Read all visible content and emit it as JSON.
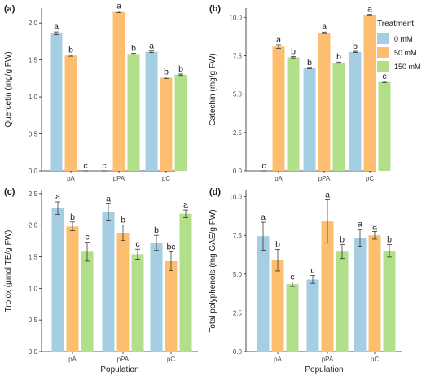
{
  "legend": {
    "title": "Treatment",
    "entries": [
      {
        "label": "0 mM",
        "color": "#a6cee3"
      },
      {
        "label": "50 mM",
        "color": "#fdbf6f"
      },
      {
        "label": "150 mM",
        "color": "#b2df8a"
      }
    ]
  },
  "chart_data": [
    {
      "type": "bar",
      "panel": "(a)",
      "categories": [
        "pA",
        "pPA",
        "pC"
      ],
      "xlabel": "",
      "ylabel": "Quercetin (mg/g FW)",
      "ylim": [
        0,
        2.2
      ],
      "yticks": [
        0.0,
        0.5,
        1.0,
        1.5,
        2.0
      ],
      "ytick_labels": [
        "0.0",
        "0.5",
        "1.0",
        "1.5",
        "2.0"
      ],
      "series": [
        {
          "name": "0 mM",
          "values": [
            1.86,
            0.0,
            1.61
          ],
          "err": [
            0.02,
            0,
            0.01
          ],
          "letters": [
            "a",
            "c",
            "a"
          ]
        },
        {
          "name": "50 mM",
          "values": [
            1.56,
            2.15,
            1.26
          ],
          "err": [
            0.01,
            0.01,
            0.01
          ],
          "letters": [
            "b",
            "a",
            "b"
          ]
        },
        {
          "name": "150 mM",
          "values": [
            0.0,
            1.58,
            1.3
          ],
          "err": [
            0,
            0.01,
            0.01
          ],
          "letters": [
            "c",
            "b",
            "b"
          ]
        }
      ]
    },
    {
      "type": "bar",
      "panel": "(b)",
      "categories": [
        "pA",
        "pPA",
        "pC"
      ],
      "xlabel": "",
      "ylabel": "Catechin (mg/g FW)",
      "ylim": [
        0,
        10.6
      ],
      "yticks": [
        0.0,
        2.5,
        5.0,
        7.5,
        10.0
      ],
      "ytick_labels": [
        "0.0",
        "2.5",
        "5.0",
        "7.5",
        "10.0"
      ],
      "series": [
        {
          "name": "0 mM",
          "values": [
            0.0,
            6.7,
            7.75
          ],
          "err": [
            0,
            0.04,
            0.04
          ],
          "letters": [
            "c",
            "b",
            "b"
          ]
        },
        {
          "name": "50 mM",
          "values": [
            8.1,
            9.0,
            10.15
          ],
          "err": [
            0.12,
            0.05,
            0.04
          ],
          "letters": [
            "a",
            "a",
            "a"
          ]
        },
        {
          "name": "150 mM",
          "values": [
            7.4,
            7.05,
            5.8
          ],
          "err": [
            0.04,
            0.04,
            0.04
          ],
          "letters": [
            "b",
            "b",
            "c"
          ]
        }
      ]
    },
    {
      "type": "bar",
      "panel": "(c)",
      "categories": [
        "pA",
        "pPA",
        "pC"
      ],
      "xlabel": "Population",
      "ylabel": "Trolox (μmol TE/g FW)",
      "ylim": [
        0,
        2.55
      ],
      "yticks": [
        0.0,
        0.5,
        1.0,
        1.5,
        2.0,
        2.5
      ],
      "ytick_labels": [
        "0.0",
        "0.5",
        "1.0",
        "1.5",
        "2.0",
        "2.5"
      ],
      "series": [
        {
          "name": "0 mM",
          "values": [
            2.27,
            2.21,
            1.72
          ],
          "err": [
            0.1,
            0.13,
            0.12
          ],
          "letters": [
            "a",
            "a",
            "b"
          ]
        },
        {
          "name": "50 mM",
          "values": [
            1.98,
            1.88,
            1.43
          ],
          "err": [
            0.07,
            0.12,
            0.15
          ],
          "letters": [
            "b",
            "b",
            "bc"
          ]
        },
        {
          "name": "150 mM",
          "values": [
            1.58,
            1.54,
            2.18
          ],
          "err": [
            0.15,
            0.08,
            0.06
          ],
          "letters": [
            "c",
            "c",
            "a"
          ]
        }
      ]
    },
    {
      "type": "bar",
      "panel": "(d)",
      "categories": [
        "pA",
        "pPA",
        "pC"
      ],
      "xlabel": "Population",
      "ylabel": "Total polyphenols (mg GAE/g FW)",
      "ylim": [
        0,
        10.4
      ],
      "yticks": [
        0.0,
        2.5,
        5.0,
        7.5,
        10.0
      ],
      "ytick_labels": [
        "0.0",
        "2.5",
        "5.0",
        "7.5",
        "10.0"
      ],
      "series": [
        {
          "name": "0 mM",
          "values": [
            7.45,
            4.65,
            7.35
          ],
          "err": [
            0.9,
            0.25,
            0.55
          ],
          "letters": [
            "a",
            "c",
            "a"
          ]
        },
        {
          "name": "50 mM",
          "values": [
            5.9,
            8.4,
            7.5
          ],
          "err": [
            0.7,
            1.4,
            0.25
          ],
          "letters": [
            "b",
            "a",
            "a"
          ]
        },
        {
          "name": "150 mM",
          "values": [
            4.35,
            6.45,
            6.5
          ],
          "err": [
            0.15,
            0.45,
            0.4
          ],
          "letters": [
            "c",
            "b",
            "b"
          ]
        }
      ]
    }
  ]
}
